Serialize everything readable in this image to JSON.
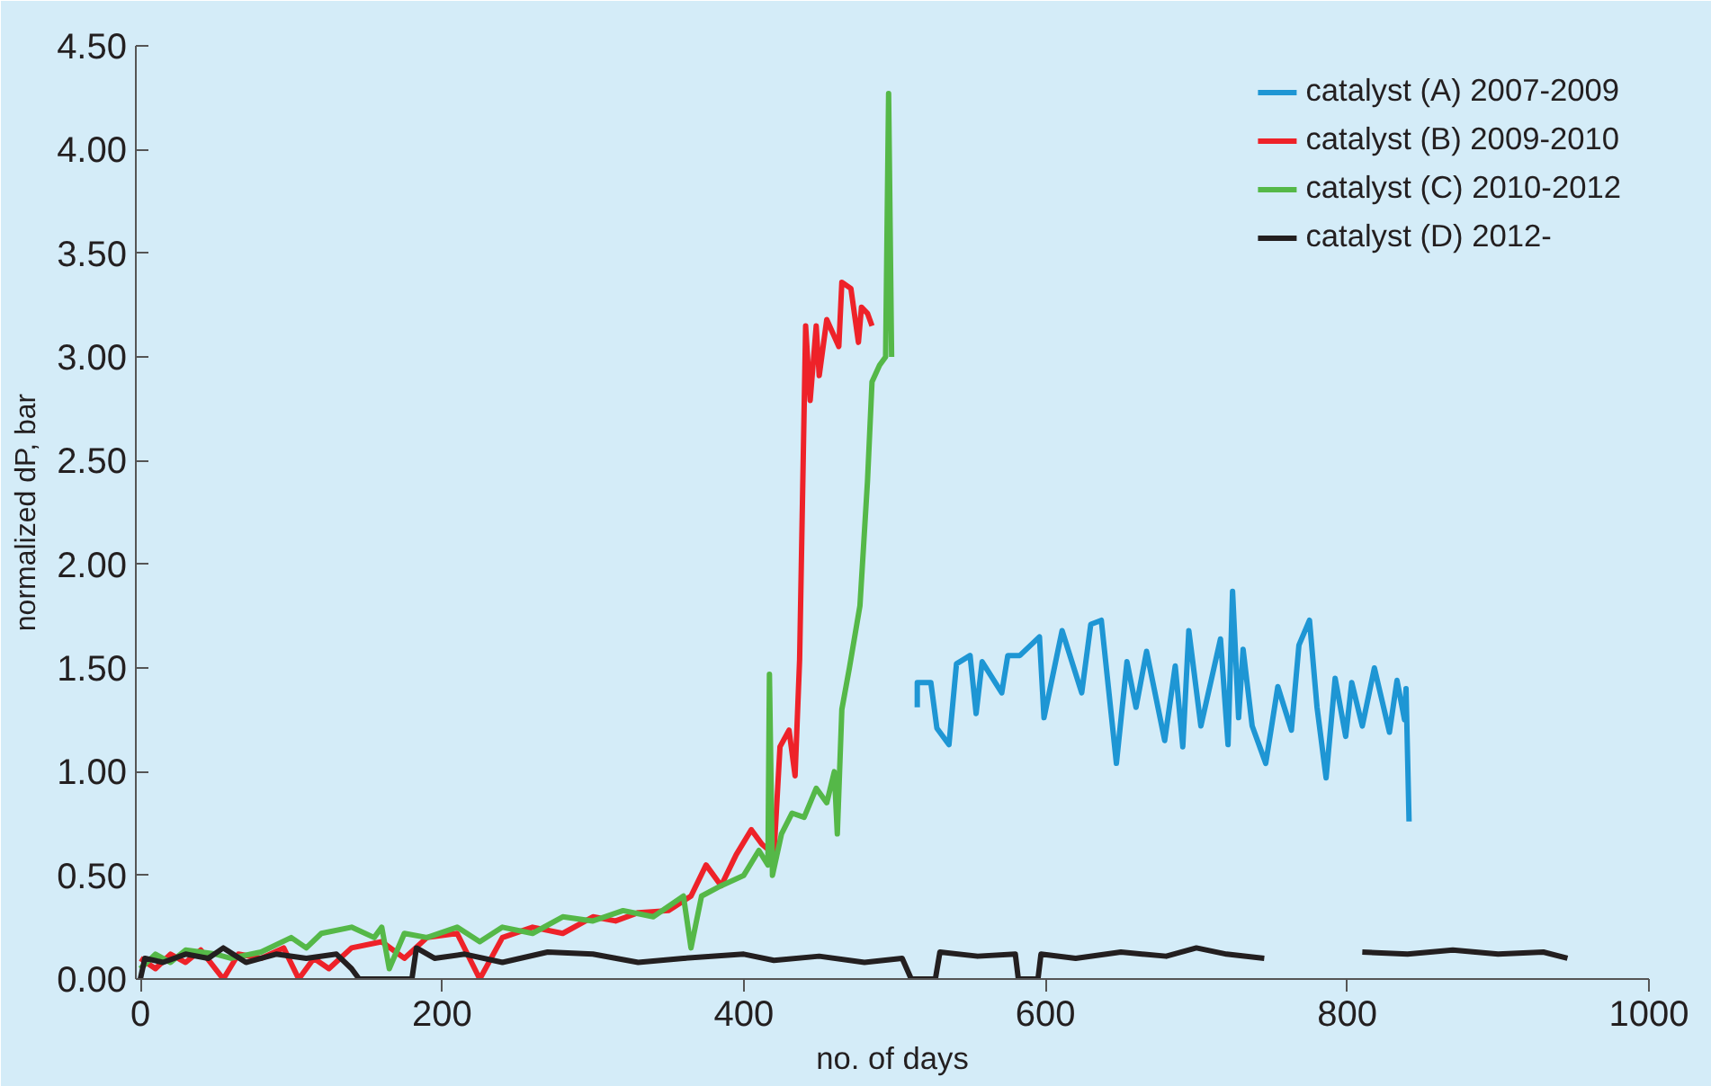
{
  "chart_data": {
    "type": "line",
    "xlabel": "no. of days",
    "ylabel": "normalized dP, bar",
    "xlim": [
      -3,
      1000
    ],
    "ylim": [
      0,
      4.5
    ],
    "xticks": [
      0,
      200,
      400,
      600,
      800,
      1000
    ],
    "yticks": [
      {
        "value": 0,
        "label": "0.00"
      },
      {
        "value": 0.5,
        "label": "0.50"
      },
      {
        "value": 1,
        "label": "1.00"
      },
      {
        "value": 1.5,
        "label": "1.50"
      },
      {
        "value": 2,
        "label": "2.00"
      },
      {
        "value": 2.5,
        "label": "2.50"
      },
      {
        "value": 3,
        "label": "3.00"
      },
      {
        "value": 3.5,
        "label": "3.50"
      },
      {
        "value": 4,
        "label": "4.00"
      },
      {
        "value": 4.5,
        "label": "4.50"
      }
    ],
    "grid": false,
    "legend": "top right",
    "line_style": "solid",
    "marker": "none",
    "series": [
      {
        "name": "catalyst (A) 2007-2009",
        "color": "#1e96d4",
        "x": [
          515,
          515,
          524,
          528,
          536,
          541,
          550,
          554,
          558,
          571,
          575,
          583,
          596,
          599,
          611,
          624,
          630,
          637,
          647,
          654,
          660,
          667,
          679,
          686,
          691,
          695,
          703,
          716,
          721,
          724,
          728,
          731,
          737,
          746,
          754,
          763,
          768,
          775,
          780,
          786,
          792,
          799,
          803,
          810,
          818,
          828,
          833,
          838,
          839,
          841
        ],
        "values": [
          1.31,
          1.43,
          1.43,
          1.21,
          1.13,
          1.52,
          1.56,
          1.28,
          1.53,
          1.38,
          1.56,
          1.56,
          1.65,
          1.26,
          1.68,
          1.38,
          1.71,
          1.73,
          1.04,
          1.53,
          1.31,
          1.58,
          1.15,
          1.51,
          1.12,
          1.68,
          1.22,
          1.64,
          1.13,
          1.87,
          1.26,
          1.59,
          1.22,
          1.04,
          1.41,
          1.2,
          1.61,
          1.73,
          1.31,
          0.97,
          1.45,
          1.17,
          1.43,
          1.22,
          1.5,
          1.19,
          1.44,
          1.25,
          1.4,
          0.76
        ]
      },
      {
        "name": "catalyst (B) 2009-2010",
        "color": "#ee2229",
        "x": [
          0,
          10,
          20,
          30,
          40,
          55,
          65,
          80,
          95,
          105,
          115,
          125,
          140,
          160,
          175,
          190,
          210,
          225,
          240,
          260,
          280,
          300,
          315,
          330,
          350,
          365,
          375,
          385,
          395,
          405,
          412,
          420,
          424,
          430,
          434,
          437,
          441,
          444,
          448,
          450,
          455,
          463,
          465,
          471,
          476,
          478,
          482,
          485
        ],
        "values": [
          0.1,
          0.05,
          0.12,
          0.08,
          0.14,
          0.0,
          0.12,
          0.1,
          0.15,
          0.0,
          0.1,
          0.05,
          0.15,
          0.18,
          0.1,
          0.2,
          0.22,
          0.0,
          0.2,
          0.25,
          0.22,
          0.3,
          0.28,
          0.32,
          0.33,
          0.4,
          0.55,
          0.45,
          0.6,
          0.72,
          0.65,
          0.6,
          1.12,
          1.2,
          0.98,
          1.54,
          3.15,
          2.79,
          3.15,
          2.91,
          3.18,
          3.05,
          3.36,
          3.33,
          3.07,
          3.24,
          3.21,
          3.15
        ]
      },
      {
        "name": "catalyst (C) 2010-2012",
        "color": "#55b848",
        "x": [
          0,
          10,
          20,
          30,
          50,
          60,
          80,
          100,
          110,
          120,
          140,
          155,
          160,
          165,
          175,
          190,
          210,
          225,
          240,
          260,
          280,
          300,
          320,
          340,
          360,
          365,
          372,
          385,
          400,
          410,
          416,
          417,
          419,
          425,
          432,
          440,
          448,
          455,
          460,
          462,
          465,
          470,
          477,
          482,
          485,
          490,
          494,
          496,
          498
        ],
        "values": [
          0.05,
          0.12,
          0.08,
          0.14,
          0.12,
          0.1,
          0.13,
          0.2,
          0.15,
          0.22,
          0.25,
          0.2,
          0.25,
          0.05,
          0.22,
          0.2,
          0.25,
          0.18,
          0.25,
          0.22,
          0.3,
          0.28,
          0.33,
          0.3,
          0.4,
          0.15,
          0.4,
          0.45,
          0.5,
          0.62,
          0.55,
          1.47,
          0.5,
          0.7,
          0.8,
          0.78,
          0.92,
          0.85,
          1.0,
          0.7,
          1.3,
          1.5,
          1.8,
          2.4,
          2.88,
          2.96,
          3.0,
          4.27,
          3.0
        ]
      },
      {
        "name": "catalyst (D) 2012-",
        "color": "#231f20",
        "x": [
          0,
          3,
          15,
          30,
          45,
          55,
          70,
          90,
          110,
          130,
          140,
          145,
          180,
          183,
          195,
          215,
          240,
          270,
          300,
          330,
          360,
          400,
          420,
          450,
          480,
          505,
          511,
          527,
          530,
          555,
          580,
          582,
          595,
          597,
          620,
          650,
          680,
          700,
          720,
          745,
          770,
          810,
          840,
          870,
          900,
          930,
          946
        ],
        "values": [
          0.0,
          0.1,
          0.08,
          0.12,
          0.1,
          0.15,
          0.08,
          0.12,
          0.1,
          0.12,
          0.05,
          0.0,
          0.0,
          0.15,
          0.1,
          0.12,
          0.08,
          0.13,
          0.12,
          0.08,
          0.1,
          0.12,
          0.09,
          0.11,
          0.08,
          0.1,
          0.0,
          0.0,
          0.13,
          0.11,
          0.12,
          0.0,
          0.0,
          0.12,
          0.1,
          0.13,
          0.11,
          0.15,
          0.12,
          0.1,
          null,
          0.13,
          0.12,
          0.14,
          0.12,
          0.13,
          0.1
        ]
      }
    ]
  }
}
